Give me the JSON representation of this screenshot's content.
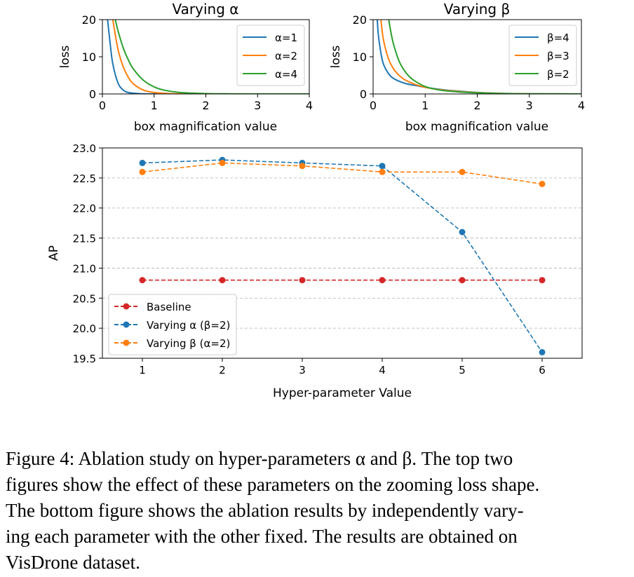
{
  "chart_data": [
    {
      "type": "line",
      "title": "Varying α",
      "xlabel": "box magnification value",
      "ylabel": "loss",
      "xlim": [
        0,
        4
      ],
      "ylim": [
        0,
        20
      ],
      "xticks": [
        "0",
        "1",
        "2",
        "3",
        "4"
      ],
      "yticks": [
        "0",
        "10",
        "20"
      ],
      "legend_position": "top-right",
      "series": [
        {
          "name": "α=1",
          "color": "#1f77b4",
          "x": [
            0.1,
            0.15,
            0.2,
            0.3,
            0.4,
            0.5,
            0.7,
            1.0,
            2.0,
            4.0
          ],
          "values": [
            20,
            13.6,
            8.2,
            3.0,
            1.1,
            0.4,
            0.1,
            0.0,
            0.0,
            0.0
          ]
        },
        {
          "name": "α=2",
          "color": "#ff7f0e",
          "x": [
            0.2,
            0.3,
            0.4,
            0.5,
            0.6,
            0.8,
            1.0,
            1.3,
            1.6,
            2.0,
            3.0,
            4.0
          ],
          "values": [
            20,
            12.1,
            7.4,
            4.5,
            2.7,
            1.0,
            0.4,
            0.1,
            0.05,
            0.0,
            0.0,
            0.0
          ]
        },
        {
          "name": "α=4",
          "color": "#2ca02c",
          "x": [
            0.25,
            0.3,
            0.4,
            0.5,
            0.6,
            0.8,
            1.0,
            1.2,
            1.5,
            2.0,
            2.5,
            3.0,
            4.0
          ],
          "values": [
            20,
            17.1,
            12.5,
            9.2,
            6.7,
            3.6,
            1.9,
            1.0,
            0.4,
            0.1,
            0.03,
            0.0,
            0.0
          ]
        }
      ]
    },
    {
      "type": "line",
      "title": "Varying β",
      "xlabel": "box magnification value",
      "ylabel": "loss",
      "xlim": [
        0,
        4
      ],
      "ylim": [
        0,
        20
      ],
      "xticks": [
        "0",
        "1",
        "2",
        "3",
        "4"
      ],
      "yticks": [
        "0",
        "10",
        "20"
      ],
      "legend_position": "top-right",
      "series": [
        {
          "name": "β=4",
          "color": "#1f77b4",
          "x": [
            0.08,
            0.1,
            0.15,
            0.2,
            0.3,
            0.4,
            0.6,
            0.8,
            1.0,
            1.3,
            1.6,
            2.0,
            2.5,
            3.0,
            4.0
          ],
          "values": [
            20,
            16,
            11,
            8.0,
            5.4,
            4.1,
            2.9,
            2.3,
            1.8,
            1.2,
            0.8,
            0.4,
            0.15,
            0.05,
            0.0
          ]
        },
        {
          "name": "β=3",
          "color": "#ff7f0e",
          "x": [
            0.15,
            0.2,
            0.3,
            0.4,
            0.5,
            0.6,
            0.8,
            1.0,
            1.3,
            1.6,
            2.0,
            2.5,
            3.0,
            4.0
          ],
          "values": [
            20,
            14.5,
            9.3,
            6.6,
            5.0,
            3.9,
            2.6,
            1.8,
            1.1,
            0.7,
            0.35,
            0.12,
            0.04,
            0.0
          ]
        },
        {
          "name": "β=2",
          "color": "#2ca02c",
          "x": [
            0.3,
            0.35,
            0.4,
            0.5,
            0.6,
            0.7,
            0.8,
            1.0,
            1.3,
            1.6,
            2.0,
            2.5,
            3.0,
            4.0
          ],
          "values": [
            20,
            16,
            13,
            8.8,
            6.3,
            4.6,
            3.5,
            2.0,
            1.0,
            0.6,
            0.3,
            0.1,
            0.03,
            0.0
          ]
        }
      ]
    },
    {
      "type": "line",
      "title": "",
      "xlabel": "Hyper-parameter Value",
      "ylabel": "AP",
      "xlim": [
        0.5,
        6.5
      ],
      "ylim": [
        19.5,
        23.0
      ],
      "grid": "horizontal dashed",
      "categories": [
        1,
        2,
        3,
        4,
        5,
        6
      ],
      "xticks": [
        "1",
        "2",
        "3",
        "4",
        "5",
        "6"
      ],
      "yticks": [
        "19.5",
        "20.0",
        "20.5",
        "21.0",
        "21.5",
        "22.0",
        "22.5",
        "23.0"
      ],
      "legend_position": "bottom-left",
      "series": [
        {
          "name": "Baseline",
          "color": "#d62728",
          "values": [
            20.8,
            20.8,
            20.8,
            20.8,
            20.8,
            20.8
          ]
        },
        {
          "name": "Varying α (β=2)",
          "color": "#1f77b4",
          "values": [
            22.75,
            22.8,
            22.75,
            22.7,
            21.6,
            19.6
          ]
        },
        {
          "name": "Varying β (α=2)",
          "color": "#ff7f0e",
          "values": [
            22.6,
            22.75,
            22.7,
            22.6,
            22.6,
            22.4
          ]
        }
      ]
    }
  ],
  "caption": {
    "line1": "Figure 4: Ablation study on hyper-parameters α and β. The top two",
    "line2": "figures show the effect of these parameters on the zooming loss shape.",
    "line3": "The bottom figure shows the ablation results by independently vary-",
    "line4": "ing each parameter with the other fixed. The results are obtained on",
    "line5": "VisDrone dataset."
  }
}
